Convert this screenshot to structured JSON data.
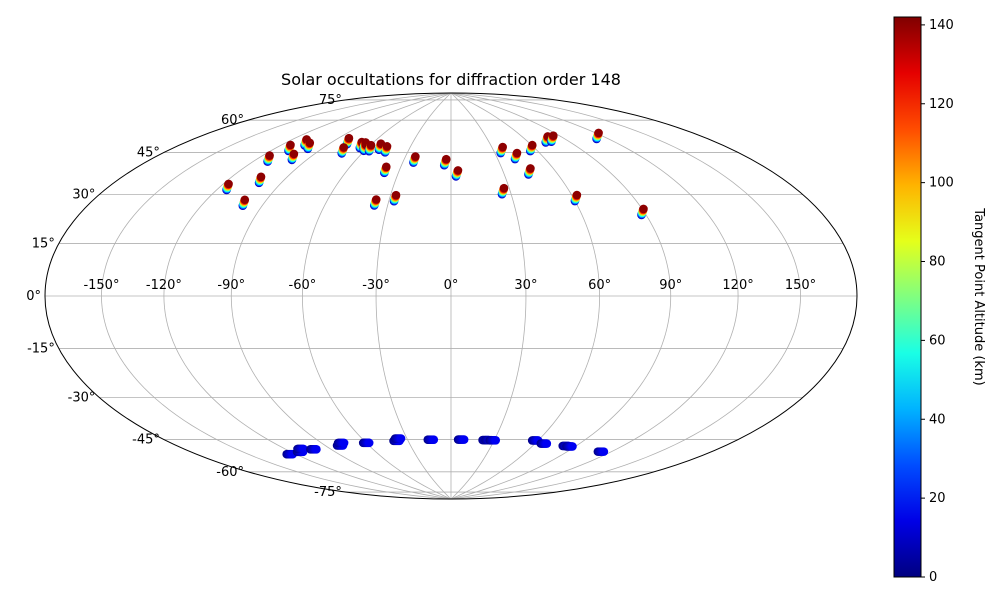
{
  "chart_data": {
    "type": "scatter",
    "projection": "hammer",
    "title": "Solar occultations for diffraction order 148",
    "x_unit": "longitude (deg)",
    "y_unit": "latitude (deg)",
    "xlim": [
      -180,
      180
    ],
    "ylim": [
      -90,
      90
    ],
    "grid": true,
    "x_ticks": [
      -150,
      -120,
      -90,
      -60,
      -30,
      0,
      30,
      60,
      90,
      120,
      150
    ],
    "x_tick_labels": [
      "-150°",
      "-120°",
      "-90°",
      "-60°",
      "-30°",
      "0°",
      "30°",
      "60°",
      "90°",
      "120°",
      "150°"
    ],
    "y_ticks": [
      75,
      60,
      45,
      30,
      15,
      0,
      -15,
      -30,
      -45,
      -60,
      -75
    ],
    "y_tick_labels": [
      "75°",
      "60°",
      "45°",
      "30°",
      "15°",
      "0°",
      "-15°",
      "-30°",
      "-45°",
      "-60°",
      "-75°"
    ],
    "colorbar": {
      "label": "Tangent Point Altitude (km)",
      "colormap": "jet",
      "range": [
        0,
        142
      ],
      "ticks": [
        0,
        20,
        40,
        60,
        80,
        100,
        120,
        140
      ],
      "tick_labels": [
        "0",
        "20",
        "40",
        "60",
        "80",
        "100",
        "120",
        "140"
      ]
    },
    "north_occultations": [
      {
        "lon": -116,
        "lat": 40
      },
      {
        "lon": -114,
        "lat": 52
      },
      {
        "lon": -112,
        "lat": 57
      },
      {
        "lon": -108,
        "lat": 60
      },
      {
        "lon": -101,
        "lat": 54
      },
      {
        "lon": -102,
        "lat": 59
      },
      {
        "lon": -103,
        "lat": 44
      },
      {
        "lon": -100,
        "lat": 35
      },
      {
        "lon": -80,
        "lat": 63
      },
      {
        "lon": -75,
        "lat": 59
      },
      {
        "lon": -67,
        "lat": 62
      },
      {
        "lon": -64,
        "lat": 62
      },
      {
        "lon": -62,
        "lat": 61
      },
      {
        "lon": -58,
        "lat": 61
      },
      {
        "lon": -52,
        "lat": 62
      },
      {
        "lon": -46,
        "lat": 61
      },
      {
        "lon": -38,
        "lat": 52
      },
      {
        "lon": -36,
        "lat": 38
      },
      {
        "lon": -27,
        "lat": 40
      },
      {
        "lon": -23,
        "lat": 57
      },
      {
        "lon": -3,
        "lat": 56
      },
      {
        "lon": 4,
        "lat": 51
      },
      {
        "lon": 27,
        "lat": 43
      },
      {
        "lon": 37,
        "lat": 61
      },
      {
        "lon": 44,
        "lat": 58
      },
      {
        "lon": 46,
        "lat": 51
      },
      {
        "lon": 59,
        "lat": 61
      },
      {
        "lon": 62,
        "lat": 39
      },
      {
        "lon": 78,
        "lat": 64
      },
      {
        "lon": 83,
        "lat": 64
      },
      {
        "lon": 90,
        "lat": 32
      },
      {
        "lon": 119,
        "lat": 62
      }
    ],
    "south_occultations": [
      {
        "lon": -124,
        "lat": -60
      },
      {
        "lon": -114,
        "lat": -60
      },
      {
        "lon": -110,
        "lat": -59
      },
      {
        "lon": -102,
        "lat": -60
      },
      {
        "lon": -80,
        "lat": -60
      },
      {
        "lon": -77,
        "lat": -59
      },
      {
        "lon": -60,
        "lat": -60
      },
      {
        "lon": -38,
        "lat": -60
      },
      {
        "lon": -36,
        "lat": -59
      },
      {
        "lon": -14,
        "lat": -60
      },
      {
        "lon": 7,
        "lat": -60
      },
      {
        "lon": 24,
        "lat": -60
      },
      {
        "lon": 26,
        "lat": -60
      },
      {
        "lon": 29,
        "lat": -60
      },
      {
        "lon": 58,
        "lat": -59
      },
      {
        "lon": 66,
        "lat": -60
      },
      {
        "lon": 83,
        "lat": -60
      },
      {
        "lon": 86,
        "lat": -60
      },
      {
        "lon": 113,
        "lat": -60
      }
    ]
  }
}
